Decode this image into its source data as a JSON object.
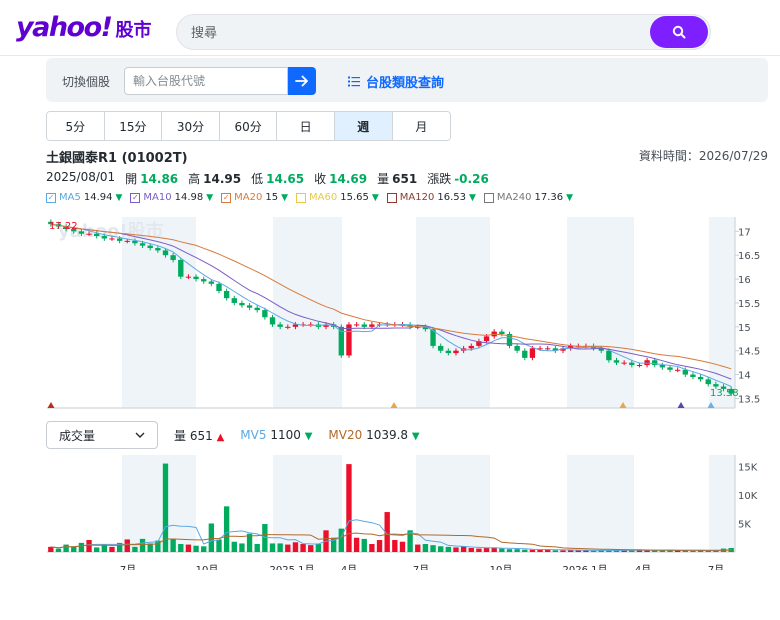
{
  "header": {
    "logo_text": "yahoo!",
    "logo_sub": "股市",
    "search_placeholder": "搜尋"
  },
  "toolbar": {
    "switch_label": "切換個股",
    "stock_input_placeholder": "輸入台股代號",
    "category_link": "台股類股查詢"
  },
  "periods": [
    {
      "label": "5分",
      "active": false
    },
    {
      "label": "15分",
      "active": false
    },
    {
      "label": "30分",
      "active": false
    },
    {
      "label": "60分",
      "active": false
    },
    {
      "label": "日",
      "active": false
    },
    {
      "label": "週",
      "active": true
    },
    {
      "label": "月",
      "active": false
    }
  ],
  "stock": {
    "title": "土銀國泰R1 (01002T)",
    "data_time": "資料時間：2026/07/29",
    "date": "2025/08/01",
    "open_label": "開",
    "open": "14.86",
    "high_label": "高",
    "high": "14.95",
    "low_label": "低",
    "low": "14.65",
    "close_label": "收",
    "close": "14.69",
    "volume_label": "量",
    "volume": "651",
    "change_label": "漲跌",
    "change": "-0.26"
  },
  "ma_legend": [
    {
      "name": "MA5",
      "value": "14.94",
      "color": "#5aa9e6",
      "checked": true
    },
    {
      "name": "MA10",
      "value": "14.98",
      "color": "#7b5cc8",
      "checked": true
    },
    {
      "name": "MA20",
      "value": "15",
      "color": "#d87a3c",
      "checked": true
    },
    {
      "name": "MA60",
      "value": "15.65",
      "color": "#e8c94a",
      "checked": false
    },
    {
      "name": "MA120",
      "value": "16.53",
      "color": "#8b3a2e",
      "checked": false
    },
    {
      "name": "MA240",
      "value": "17.36",
      "color": "#777777",
      "checked": false
    }
  ],
  "volume_panel": {
    "select_value": "成交量",
    "vol_label": "量",
    "vol_value": "651",
    "mv5_label": "MV5",
    "mv5_value": "1100",
    "mv5_color": "#5aa9e6",
    "mv20_label": "MV20",
    "mv20_value": "1039.8",
    "mv20_color": "#b06a2a"
  },
  "chart_data": {
    "type": "candlestick",
    "price_axis_ticks": [
      "17",
      "16.5",
      "16",
      "15.5",
      "15",
      "14.5",
      "14",
      "13.5"
    ],
    "price_ylim": [
      13.3,
      17.3
    ],
    "high_marker": "17.22",
    "low_marker": "13.58",
    "volume_axis_ticks": [
      "15K",
      "10K",
      "5K"
    ],
    "volume_ylim": [
      0,
      17000
    ],
    "x_tick_labels": [
      "7月",
      "10月",
      "2025 1月",
      "4月",
      "7月",
      "10月",
      "2026 1月",
      "4月",
      "7月"
    ],
    "closes": [
      17.15,
      17.1,
      17.05,
      17.0,
      16.95,
      16.95,
      16.9,
      16.85,
      16.85,
      16.8,
      16.8,
      16.75,
      16.7,
      16.65,
      16.6,
      16.5,
      16.4,
      16.05,
      16.05,
      16.0,
      15.95,
      15.9,
      15.75,
      15.6,
      15.5,
      15.45,
      15.4,
      15.35,
      15.2,
      15.05,
      15.0,
      15.0,
      15.05,
      15.05,
      15.05,
      15.0,
      15.05,
      15.0,
      14.4,
      15.05,
      15.05,
      15.0,
      15.05,
      15.05,
      15.05,
      15.05,
      15.05,
      15.0,
      15.0,
      14.95,
      14.6,
      14.5,
      14.45,
      14.5,
      14.55,
      14.6,
      14.7,
      14.8,
      14.9,
      14.85,
      14.6,
      14.5,
      14.35,
      14.55,
      14.55,
      14.55,
      14.5,
      14.55,
      14.6,
      14.6,
      14.6,
      14.55,
      14.5,
      14.3,
      14.25,
      14.25,
      14.2,
      14.2,
      14.3,
      14.2,
      14.15,
      14.1,
      14.1,
      14.0,
      13.95,
      13.9,
      13.8,
      13.75,
      13.7,
      13.6
    ],
    "volumes": [
      900,
      600,
      1300,
      900,
      1600,
      2100,
      800,
      1300,
      900,
      1600,
      2200,
      900,
      2300,
      1500,
      2000,
      15500,
      2200,
      1400,
      1300,
      1100,
      1000,
      5000,
      2200,
      8000,
      1800,
      1500,
      3200,
      1400,
      4900,
      1500,
      1500,
      1300,
      1700,
      1400,
      1200,
      1400,
      3800,
      2500,
      4100,
      15400,
      2500,
      2300,
      1400,
      2100,
      7000,
      2100,
      1800,
      3800,
      1300,
      1400,
      1200,
      1000,
      900,
      800,
      1000,
      700,
      600,
      700,
      800,
      600,
      500,
      500,
      400,
      400,
      400,
      500,
      300,
      300,
      300,
      300,
      300,
      200,
      300,
      300,
      300,
      300,
      300,
      300,
      300,
      300,
      300,
      400,
      300,
      300,
      200,
      300,
      200,
      300,
      600,
      700
    ]
  }
}
